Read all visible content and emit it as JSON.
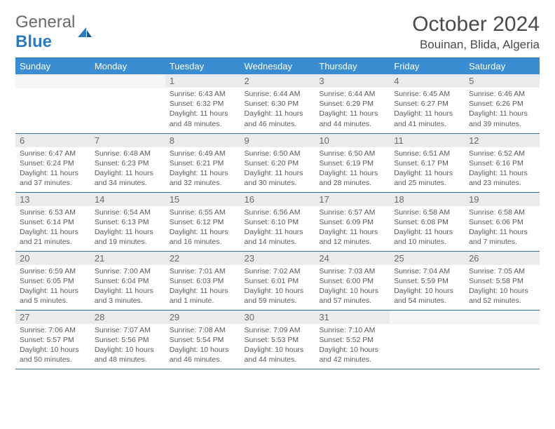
{
  "logo": {
    "general": "General",
    "blue": "Blue"
  },
  "title": "October 2024",
  "location": "Bouinan, Blida, Algeria",
  "colors": {
    "header_bg": "#3a8dd0",
    "header_text": "#ffffff",
    "daynum_bg": "#e9ebec",
    "daynum_text": "#6a6a6a",
    "border": "#2b6fa8",
    "body_text": "#5a5a5a",
    "logo_gray": "#6a6a6a",
    "logo_blue": "#2f7bbf"
  },
  "days_of_week": [
    "Sunday",
    "Monday",
    "Tuesday",
    "Wednesday",
    "Thursday",
    "Friday",
    "Saturday"
  ],
  "weeks": [
    [
      null,
      null,
      {
        "n": "1",
        "sunrise": "Sunrise: 6:43 AM",
        "sunset": "Sunset: 6:32 PM",
        "daylight": "Daylight: 11 hours and 48 minutes."
      },
      {
        "n": "2",
        "sunrise": "Sunrise: 6:44 AM",
        "sunset": "Sunset: 6:30 PM",
        "daylight": "Daylight: 11 hours and 46 minutes."
      },
      {
        "n": "3",
        "sunrise": "Sunrise: 6:44 AM",
        "sunset": "Sunset: 6:29 PM",
        "daylight": "Daylight: 11 hours and 44 minutes."
      },
      {
        "n": "4",
        "sunrise": "Sunrise: 6:45 AM",
        "sunset": "Sunset: 6:27 PM",
        "daylight": "Daylight: 11 hours and 41 minutes."
      },
      {
        "n": "5",
        "sunrise": "Sunrise: 6:46 AM",
        "sunset": "Sunset: 6:26 PM",
        "daylight": "Daylight: 11 hours and 39 minutes."
      }
    ],
    [
      {
        "n": "6",
        "sunrise": "Sunrise: 6:47 AM",
        "sunset": "Sunset: 6:24 PM",
        "daylight": "Daylight: 11 hours and 37 minutes."
      },
      {
        "n": "7",
        "sunrise": "Sunrise: 6:48 AM",
        "sunset": "Sunset: 6:23 PM",
        "daylight": "Daylight: 11 hours and 34 minutes."
      },
      {
        "n": "8",
        "sunrise": "Sunrise: 6:49 AM",
        "sunset": "Sunset: 6:21 PM",
        "daylight": "Daylight: 11 hours and 32 minutes."
      },
      {
        "n": "9",
        "sunrise": "Sunrise: 6:50 AM",
        "sunset": "Sunset: 6:20 PM",
        "daylight": "Daylight: 11 hours and 30 minutes."
      },
      {
        "n": "10",
        "sunrise": "Sunrise: 6:50 AM",
        "sunset": "Sunset: 6:19 PM",
        "daylight": "Daylight: 11 hours and 28 minutes."
      },
      {
        "n": "11",
        "sunrise": "Sunrise: 6:51 AM",
        "sunset": "Sunset: 6:17 PM",
        "daylight": "Daylight: 11 hours and 25 minutes."
      },
      {
        "n": "12",
        "sunrise": "Sunrise: 6:52 AM",
        "sunset": "Sunset: 6:16 PM",
        "daylight": "Daylight: 11 hours and 23 minutes."
      }
    ],
    [
      {
        "n": "13",
        "sunrise": "Sunrise: 6:53 AM",
        "sunset": "Sunset: 6:14 PM",
        "daylight": "Daylight: 11 hours and 21 minutes."
      },
      {
        "n": "14",
        "sunrise": "Sunrise: 6:54 AM",
        "sunset": "Sunset: 6:13 PM",
        "daylight": "Daylight: 11 hours and 19 minutes."
      },
      {
        "n": "15",
        "sunrise": "Sunrise: 6:55 AM",
        "sunset": "Sunset: 6:12 PM",
        "daylight": "Daylight: 11 hours and 16 minutes."
      },
      {
        "n": "16",
        "sunrise": "Sunrise: 6:56 AM",
        "sunset": "Sunset: 6:10 PM",
        "daylight": "Daylight: 11 hours and 14 minutes."
      },
      {
        "n": "17",
        "sunrise": "Sunrise: 6:57 AM",
        "sunset": "Sunset: 6:09 PM",
        "daylight": "Daylight: 11 hours and 12 minutes."
      },
      {
        "n": "18",
        "sunrise": "Sunrise: 6:58 AM",
        "sunset": "Sunset: 6:08 PM",
        "daylight": "Daylight: 11 hours and 10 minutes."
      },
      {
        "n": "19",
        "sunrise": "Sunrise: 6:58 AM",
        "sunset": "Sunset: 6:06 PM",
        "daylight": "Daylight: 11 hours and 7 minutes."
      }
    ],
    [
      {
        "n": "20",
        "sunrise": "Sunrise: 6:59 AM",
        "sunset": "Sunset: 6:05 PM",
        "daylight": "Daylight: 11 hours and 5 minutes."
      },
      {
        "n": "21",
        "sunrise": "Sunrise: 7:00 AM",
        "sunset": "Sunset: 6:04 PM",
        "daylight": "Daylight: 11 hours and 3 minutes."
      },
      {
        "n": "22",
        "sunrise": "Sunrise: 7:01 AM",
        "sunset": "Sunset: 6:03 PM",
        "daylight": "Daylight: 11 hours and 1 minute."
      },
      {
        "n": "23",
        "sunrise": "Sunrise: 7:02 AM",
        "sunset": "Sunset: 6:01 PM",
        "daylight": "Daylight: 10 hours and 59 minutes."
      },
      {
        "n": "24",
        "sunrise": "Sunrise: 7:03 AM",
        "sunset": "Sunset: 6:00 PM",
        "daylight": "Daylight: 10 hours and 57 minutes."
      },
      {
        "n": "25",
        "sunrise": "Sunrise: 7:04 AM",
        "sunset": "Sunset: 5:59 PM",
        "daylight": "Daylight: 10 hours and 54 minutes."
      },
      {
        "n": "26",
        "sunrise": "Sunrise: 7:05 AM",
        "sunset": "Sunset: 5:58 PM",
        "daylight": "Daylight: 10 hours and 52 minutes."
      }
    ],
    [
      {
        "n": "27",
        "sunrise": "Sunrise: 7:06 AM",
        "sunset": "Sunset: 5:57 PM",
        "daylight": "Daylight: 10 hours and 50 minutes."
      },
      {
        "n": "28",
        "sunrise": "Sunrise: 7:07 AM",
        "sunset": "Sunset: 5:56 PM",
        "daylight": "Daylight: 10 hours and 48 minutes."
      },
      {
        "n": "29",
        "sunrise": "Sunrise: 7:08 AM",
        "sunset": "Sunset: 5:54 PM",
        "daylight": "Daylight: 10 hours and 46 minutes."
      },
      {
        "n": "30",
        "sunrise": "Sunrise: 7:09 AM",
        "sunset": "Sunset: 5:53 PM",
        "daylight": "Daylight: 10 hours and 44 minutes."
      },
      {
        "n": "31",
        "sunrise": "Sunrise: 7:10 AM",
        "sunset": "Sunset: 5:52 PM",
        "daylight": "Daylight: 10 hours and 42 minutes."
      },
      null,
      null
    ]
  ]
}
